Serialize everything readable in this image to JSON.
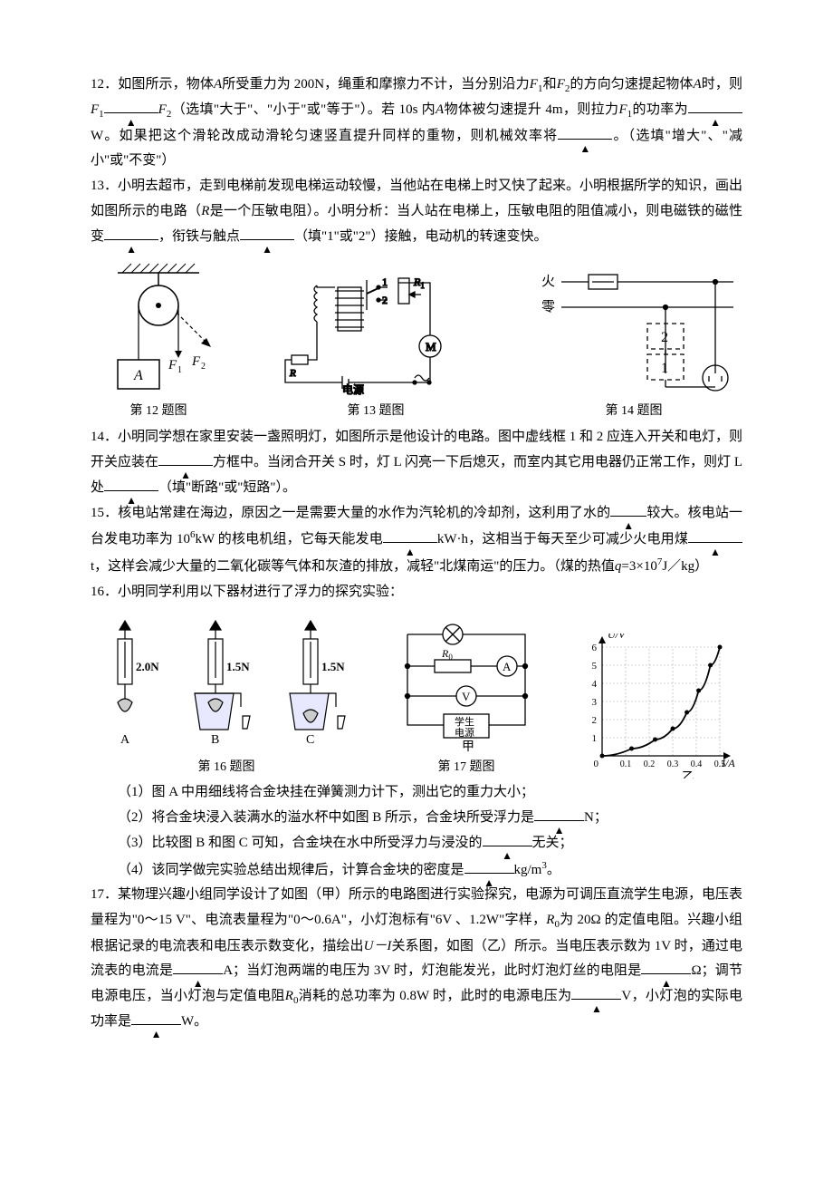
{
  "q12": {
    "text1": "12．如图所示，物体",
    "A": "A",
    "text2": "所受重力为 200N，绳重和摩擦力不计，当分别沿力",
    "F1_1": "F",
    "text3": "和",
    "F2_1": "F",
    "text4": "的方向匀速提起物体",
    "text5": "时，则",
    "text6": "（选填\"大于\"、\"小于\"或\"等于\"）。若 10s 内",
    "text7": "物体被匀速提升 4m，则拉力",
    "text8": "的功率为",
    "text9": "W。如果把这个滑轮改成动滑轮匀速竖直提升同样的重物，则机械效率将",
    "text10": "。（选填\"增大\"、\"减小\"或\"不变\"）"
  },
  "q13": {
    "text1": "13．小明去超市，走到电梯前发现电梯运动较慢，当他站在电梯上时又快了起来。小明根据所学的知识，画出如图所示的电路（",
    "R": "R",
    "text2": "是一个压敏电阻）。小明分析：当人站在电梯上，压敏电阻的阻值减小，则电磁铁的磁性变",
    "text3": "，衔铁与触点",
    "text4": "（填\"1\"或\"2\"）接触，电动机的转速变快。"
  },
  "figcaps1": {
    "c12": "第 12 题图",
    "c13": "第 13 题图",
    "c14": "第 14 题图"
  },
  "q14": {
    "text1": "14．小明同学想在家里安装一盏照明灯，如图所示是他设计的电路。图中虚线框 1 和 2 应连入开关和电灯，则开关应装在",
    "text2": "方框中。当闭合开关 S 时，灯 L 闪亮一下后熄灭，而室内其它用电器仍正常工作，则灯 L 处",
    "text3": "（填\"断路\"或\"短路\"）。"
  },
  "q15": {
    "text1": "15．核电站常建在海边，原因之一是需要大量的水作为汽轮机的冷却剂，这利用了水的",
    "text2": "较大。核电站一台发电功率为 10",
    "exp6": "6",
    "text3": "kW 的核电机组，它每天能发电",
    "text4": "kW·h，这相当于每天至少可减少火电用煤",
    "text5": "t，这样会减少大量的二氧化碳等气体和灰渣的排放，减轻\"北煤南运\"的压力。（煤的热值",
    "q": "q",
    "text6": "=3×10",
    "exp7": "7",
    "text7": "J／kg）"
  },
  "q16": {
    "text1": "16．小明同学利用以下器材进行了浮力的探究实验：",
    "sub1": "（1）图 A 中用细线将合金块挂在弹簧测力计下，测出它的重力大小；",
    "sub2a": "（2）将合金块浸入装满水的溢水杯中如图 B 所示，合金块所受浮力是",
    "sub2b": "N；",
    "sub3a": "（3）比较图 B 和图 C 可知，合金块在水中所受浮力与浸没的",
    "sub3b": "无关；",
    "sub4a": "（4）该同学做完实验总结出规律后，计算合金块的密度是",
    "sub4b": "kg/m",
    "exp3": "3",
    "sub4c": "。"
  },
  "figcaps2": {
    "c16": "第 16 题图",
    "c17": "第 17 题图"
  },
  "fig16": {
    "vA": "2.0N",
    "vB": "1.5N",
    "vC": "1.5N",
    "A": "A",
    "B": "B",
    "C": "C"
  },
  "fig17": {
    "R0": "R",
    "lbl_src": "学生电源",
    "lbl_A": "A",
    "lbl_V": "V",
    "jia": "甲",
    "yi": "乙",
    "ylabel": "U/V",
    "xlabel": "I/A",
    "yticks": [
      0,
      1,
      2,
      3,
      4,
      5,
      6
    ],
    "xticks": [
      "0",
      "0.1",
      "0.2",
      "0.3",
      "0.4",
      "0.5"
    ],
    "curve": [
      [
        0,
        0
      ],
      [
        25,
        8
      ],
      [
        45,
        18
      ],
      [
        60,
        30
      ],
      [
        72,
        48
      ],
      [
        82,
        72
      ],
      [
        92,
        100
      ],
      [
        100,
        120
      ]
    ],
    "grid_color": "#aaa"
  },
  "q17": {
    "text1": "17．某物理兴趣小组同学设计了如图（甲）所示的电路图进行实验探究，电源为可调压直流学生电源，电压表量程为\"0～15 V\"、电流表量程为\"0～0.6A\"，小灯泡标有\"6V 、1.2W\"字样，",
    "R0": "R",
    "text2": "为 20Ω 的定值电阻。兴趣小组根据记录的电流表和电压表示数变化，描绘出",
    "UI": "U－I",
    "text3": "关系图，如图（乙）所示。当电压表示数为 1V 时，通过电流表的电流是",
    "text4": "A；当灯泡两端的电压为 3V 时，灯泡能发光，此时灯泡灯丝的电阻是",
    "text5": "Ω；调节电源电压，当小灯泡与定值电阻",
    "text6": "消耗的总功率为 0.8W 时，此时的电源电压为",
    "text7": "V，小灯泡的实际电功率是",
    "text8": "W。"
  },
  "fig14": {
    "huo": "火",
    "ling": "零",
    "n1": "1",
    "n2": "2"
  },
  "fig13": {
    "n1": "1",
    "n2": "2",
    "R1": "R",
    "R": "R",
    "dy": "电源",
    "M": "M"
  },
  "fig12": {
    "A": "A",
    "F1": "F",
    "F2": "F"
  }
}
